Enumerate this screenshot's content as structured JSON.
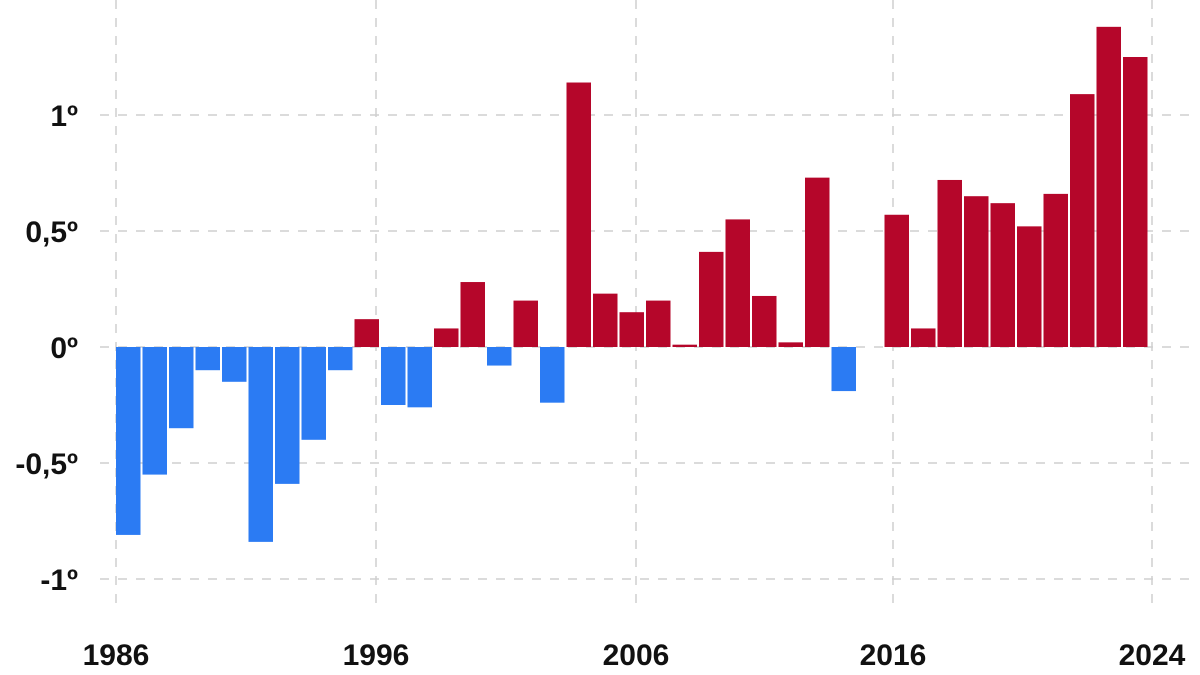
{
  "chart_data": {
    "type": "bar",
    "title": "",
    "xlabel": "",
    "ylabel": "",
    "ylim": [
      -1.1,
      1.45
    ],
    "grid": true,
    "legend": null,
    "y_ticks": [
      {
        "value": 1,
        "label": "1º"
      },
      {
        "value": 0.5,
        "label": "0,5º"
      },
      {
        "value": 0,
        "label": "0º"
      },
      {
        "value": -0.5,
        "label": "-0,5º"
      },
      {
        "value": -1,
        "label": "-1º"
      }
    ],
    "x_ticks": [
      {
        "year": 1986,
        "label": "1986"
      },
      {
        "year": 1996,
        "label": "1996"
      },
      {
        "year": 2006,
        "label": "2006"
      },
      {
        "year": 2016,
        "label": "2016"
      },
      {
        "year": 2024,
        "label": "2024"
      }
    ],
    "colors": {
      "positive": "#B5062A",
      "negative": "#2B7BF3"
    },
    "categories": [
      1986,
      1987,
      1988,
      1989,
      1990,
      1991,
      1992,
      1993,
      1994,
      1995,
      1996,
      1997,
      1998,
      1999,
      2000,
      2001,
      2002,
      2003,
      2004,
      2005,
      2006,
      2007,
      2008,
      2009,
      2010,
      2011,
      2012,
      2013,
      2014,
      2015,
      2016,
      2017,
      2018,
      2019,
      2020,
      2021,
      2022,
      2023,
      2024
    ],
    "values": [
      -0.81,
      -0.55,
      -0.35,
      -0.1,
      -0.15,
      -0.84,
      -0.59,
      -0.4,
      -0.1,
      0.12,
      -0.25,
      -0.26,
      0.08,
      0.28,
      -0.08,
      0.2,
      -0.24,
      1.14,
      0.23,
      0.15,
      0.2,
      0.01,
      0.41,
      0.55,
      0.22,
      0.02,
      0.73,
      -0.19,
      0.0,
      0.57,
      0.08,
      0.72,
      0.65,
      0.62,
      0.52,
      0.66,
      1.09,
      1.38,
      1.25
    ]
  }
}
